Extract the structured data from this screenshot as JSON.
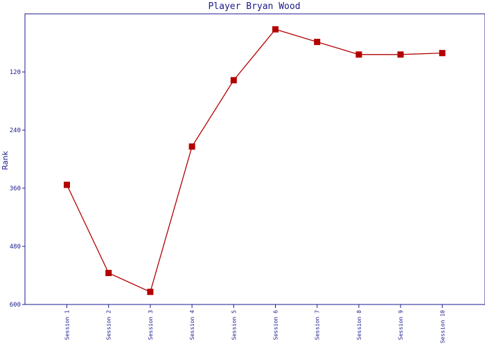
{
  "chart_data": {
    "type": "line",
    "title": "Player Bryan Wood",
    "xlabel": "",
    "ylabel": "Rank",
    "y_inverted": true,
    "ylim": [
      600,
      0
    ],
    "yticks": [
      120,
      240,
      360,
      480,
      600
    ],
    "categories": [
      "Session 1",
      "Session 2",
      "Session 3",
      "Session 4",
      "Session 5",
      "Session 6",
      "Session 7",
      "Session 8",
      "Session 9",
      "Session 10"
    ],
    "series": [
      {
        "values": [
          353,
          535,
          574,
          274,
          137,
          32,
          58,
          84,
          84,
          81
        ],
        "color": "#b30000"
      }
    ],
    "grid": false,
    "axis_color": "#1a1a8c"
  }
}
